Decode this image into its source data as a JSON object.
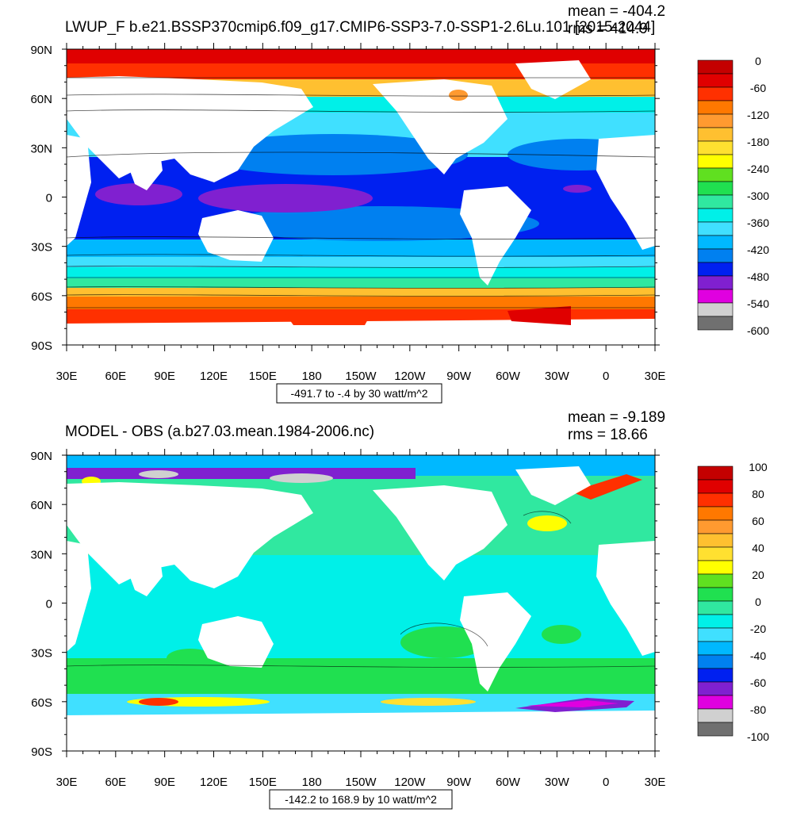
{
  "panels": [
    {
      "title": "LWUP_F b.e21.BSSP370cmip6.f09_g17.CMIP6-SSP3-7.0-SSP1-2.6Lu.101 [2015-2044]",
      "mean": "mean = -404.2",
      "rms": "rms = 414.9",
      "range_label": "-491.7 to -.4 by 30 watt/m^2",
      "colorbar_labels": [
        "0",
        "-60",
        "-120",
        "-180",
        "-240",
        "-300",
        "-360",
        "-420",
        "-480",
        "-540",
        "-600"
      ]
    },
    {
      "title": "MODEL - OBS (a.b27.03.mean.1984-2006.nc)",
      "mean": "mean = -9.189",
      "rms": "rms = 18.66",
      "range_label": "-142.2 to 168.9 by 10 watt/m^2",
      "colorbar_labels": [
        "100",
        "80",
        "60",
        "40",
        "20",
        "0",
        "-20",
        "-40",
        "-60",
        "-80",
        "-100"
      ]
    }
  ],
  "axes": {
    "lat_labels": [
      "90N",
      "60N",
      "30N",
      "0",
      "30S",
      "60S",
      "90S"
    ],
    "lon_labels": [
      "30E",
      "60E",
      "90E",
      "120E",
      "150E",
      "180",
      "150W",
      "120W",
      "90W",
      "60W",
      "30W",
      "0",
      "30E"
    ]
  },
  "colors": {
    "panel1_colorbar": [
      "#c40000",
      "#e00000",
      "#ff3000",
      "#ff7800",
      "#ff9a30",
      "#ffc030",
      "#ffe030",
      "#ffff00",
      "#60e020",
      "#20e050",
      "#30e8a0",
      "#00f0e8",
      "#40e0ff",
      "#00b8ff",
      "#0080f0",
      "#0020f0",
      "#8020d0",
      "#e000e0",
      "#d0d0d0",
      "#707070"
    ],
    "panel2_colorbar": [
      "#c40000",
      "#e00000",
      "#ff3000",
      "#ff7800",
      "#ff9a30",
      "#ffc030",
      "#ffe030",
      "#ffff00",
      "#60e020",
      "#20e050",
      "#30e8a0",
      "#00f0e8",
      "#40e0ff",
      "#00b8ff",
      "#0080f0",
      "#0020f0",
      "#8020d0",
      "#e000e0",
      "#d0d0d0",
      "#707070"
    ]
  }
}
